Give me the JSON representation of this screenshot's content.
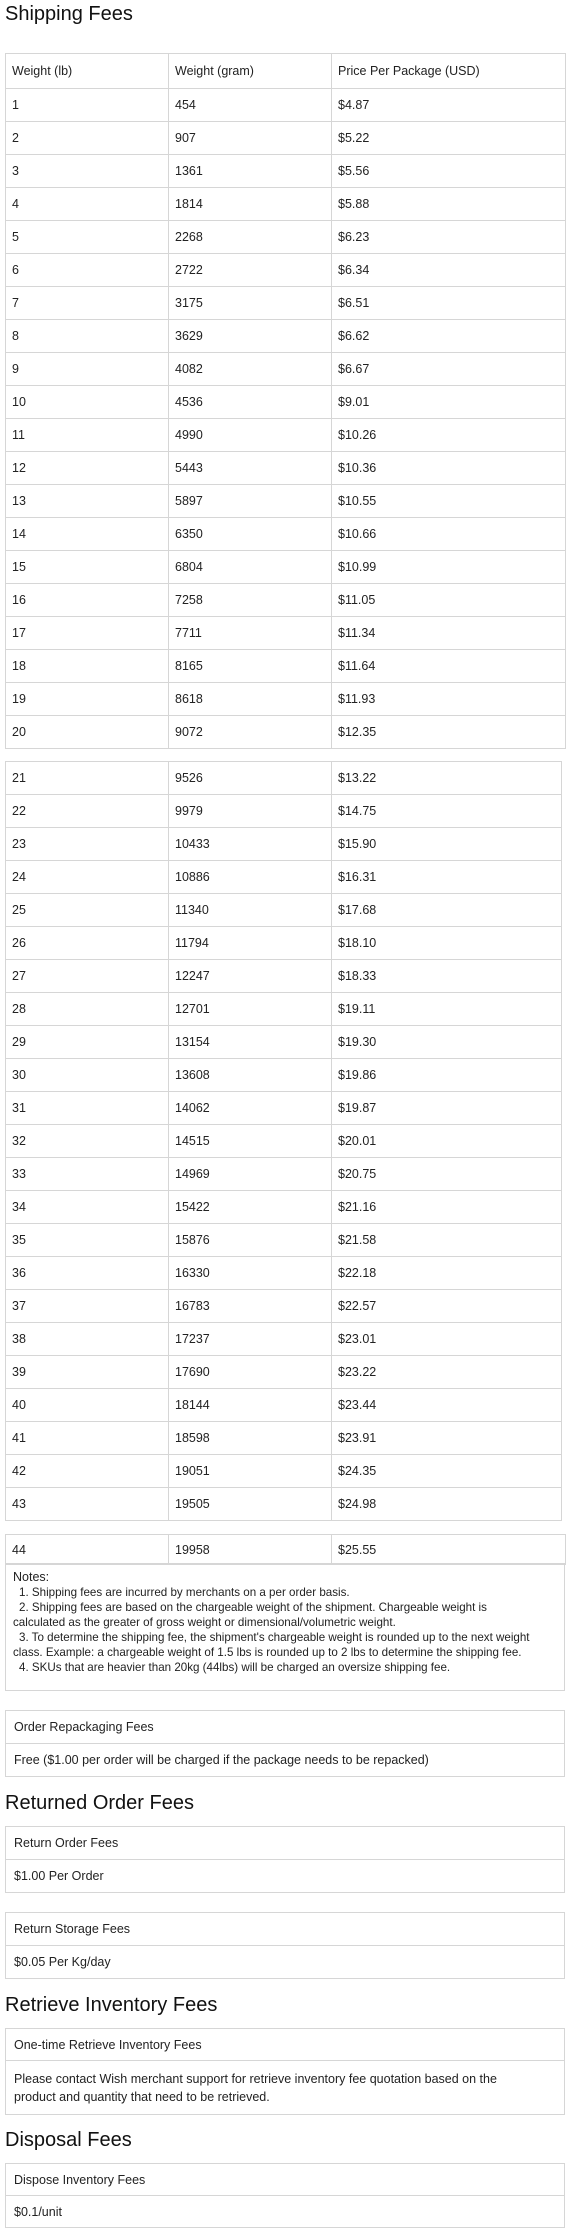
{
  "sections": {
    "shipping_title": "Shipping Fees",
    "returned_title": "Returned Order Fees",
    "retrieve_title": "Retrieve Inventory Fees",
    "disposal_title": "Disposal Fees"
  },
  "shipping_table": {
    "headers": [
      "Weight (lb)",
      "Weight (gram)",
      "Price Per Package (USD)"
    ],
    "rows": [
      [
        "1",
        "454",
        "$4.87"
      ],
      [
        "2",
        "907",
        "$5.22"
      ],
      [
        "3",
        "1361",
        "$5.56"
      ],
      [
        "4",
        "1814",
        "$5.88"
      ],
      [
        "5",
        "2268",
        "$6.23"
      ],
      [
        "6",
        "2722",
        "$6.34"
      ],
      [
        "7",
        "3175",
        "$6.51"
      ],
      [
        "8",
        "3629",
        "$6.62"
      ],
      [
        "9",
        "4082",
        "$6.67"
      ],
      [
        "10",
        "4536",
        "$9.01"
      ],
      [
        "11",
        "4990",
        "$10.26"
      ],
      [
        "12",
        "5443",
        "$10.36"
      ],
      [
        "13",
        "5897",
        "$10.55"
      ],
      [
        "14",
        "6350",
        "$10.66"
      ],
      [
        "15",
        "6804",
        "$10.99"
      ],
      [
        "16",
        "7258",
        "$11.05"
      ],
      [
        "17",
        "7711",
        "$11.34"
      ],
      [
        "18",
        "8165",
        "$11.64"
      ],
      [
        "19",
        "8618",
        "$11.93"
      ],
      [
        "20",
        "9072",
        "$12.35"
      ]
    ],
    "rows_2": [
      [
        "21",
        "9526",
        "$13.22"
      ],
      [
        "22",
        "9979",
        "$14.75"
      ],
      [
        "23",
        "10433",
        "$15.90"
      ],
      [
        "24",
        "10886",
        "$16.31"
      ],
      [
        "25",
        "11340",
        "$17.68"
      ],
      [
        "26",
        "11794",
        "$18.10"
      ],
      [
        "27",
        "12247",
        "$18.33"
      ],
      [
        "28",
        "12701",
        "$19.11"
      ],
      [
        "29",
        "13154",
        "$19.30"
      ],
      [
        "30",
        "13608",
        "$19.86"
      ],
      [
        "31",
        "14062",
        "$19.87"
      ],
      [
        "32",
        "14515",
        "$20.01"
      ],
      [
        "33",
        "14969",
        "$20.75"
      ],
      [
        "34",
        "15422",
        "$21.16"
      ],
      [
        "35",
        "15876",
        "$21.58"
      ],
      [
        "36",
        "16330",
        "$22.18"
      ],
      [
        "37",
        "16783",
        "$22.57"
      ],
      [
        "38",
        "17237",
        "$23.01"
      ],
      [
        "39",
        "17690",
        "$23.22"
      ],
      [
        "40",
        "18144",
        "$23.44"
      ],
      [
        "41",
        "18598",
        "$23.91"
      ],
      [
        "42",
        "19051",
        "$24.35"
      ],
      [
        "43",
        "19505",
        "$24.98"
      ]
    ],
    "rows_3": [
      [
        "44",
        "19958",
        "$25.55"
      ]
    ]
  },
  "notes": {
    "title": "Notes:",
    "lines": [
      "1. Shipping fees are incurred by merchants on a per order basis.",
      "2. Shipping fees are based on the chargeable weight of the shipment. Chargeable weight is",
      "calculated as the greater of gross weight or dimensional/volumetric weight.",
      "3. To determine the shipping fee, the shipment's chargeable weight is rounded up to the next weight",
      "class. Example: a chargeable weight of 1.5 lbs is rounded up to 2 lbs to determine the shipping fee.",
      "4. SKUs that are heavier than 20kg (44lbs) will be charged an oversize shipping fee."
    ]
  },
  "repackaging": {
    "label": "Order Repackaging Fees",
    "value": "Free ($1.00 per order will be charged if the package needs to be repacked)"
  },
  "return_order": {
    "label": "Return Order Fees",
    "value": "$1.00 Per Order"
  },
  "return_storage": {
    "label": "Return Storage Fees",
    "value": "$0.05 Per Kg/day"
  },
  "retrieve": {
    "label": "One-time Retrieve Inventory Fees",
    "value_line1": "Please contact Wish merchant support for retrieve inventory fee quotation based on the",
    "value_line2": "product and quantity that need to be retrieved."
  },
  "dispose": {
    "label": "Dispose Inventory Fees",
    "value": "$0.1/unit"
  }
}
